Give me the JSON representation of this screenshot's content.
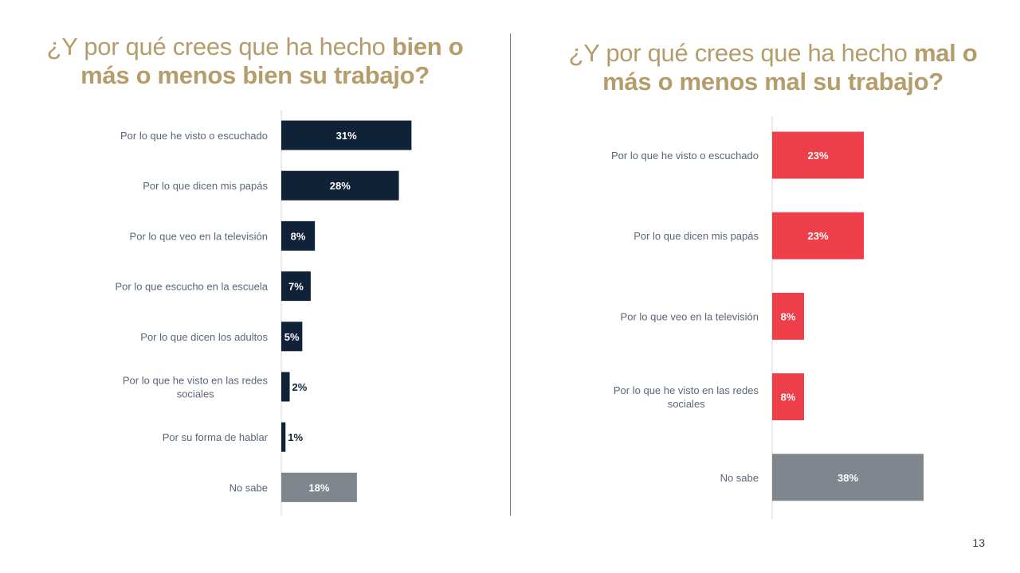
{
  "left_title": {
    "light": "¿Y por qué crees que ha hecho ",
    "bold": "bien o más o menos bien su trabajo?"
  },
  "right_title": {
    "light": "¿Y por qué crees que ha hecho ",
    "bold": "mal o más o menos mal su trabajo?"
  },
  "page_number": "13",
  "colors": {
    "title": "#b49d6b",
    "navy": "#0f2237",
    "red": "#ee3e4a",
    "gray": "#7f868e",
    "axis": "#d4d4d4"
  },
  "chart_data": [
    {
      "type": "bar",
      "orientation": "horizontal",
      "title": "¿Y por qué crees que ha hecho bien o más o menos bien su trabajo?",
      "categories": [
        [
          "Por lo que he visto o escuchado"
        ],
        [
          "Por lo que dicen mis papás"
        ],
        [
          "Por lo que veo en la televisión"
        ],
        [
          "Por lo que escucho en la escuela"
        ],
        [
          "Por lo que dicen los adultos"
        ],
        [
          "Por lo que he visto en las redes",
          "sociales"
        ],
        [
          "Por su forma de hablar"
        ],
        [
          "No sabe"
        ]
      ],
      "values": [
        31,
        28,
        8,
        7,
        5,
        2,
        1,
        18
      ],
      "value_labels": [
        "31%",
        "28%",
        "8%",
        "7%",
        "5%",
        "2%",
        "1%",
        "18%"
      ],
      "bar_colors": [
        "#0f2237",
        "#0f2237",
        "#0f2237",
        "#0f2237",
        "#0f2237",
        "#0f2237",
        "#0f2237",
        "#7f868e"
      ],
      "label_inside": [
        true,
        true,
        true,
        true,
        true,
        false,
        false,
        true
      ],
      "xlim": [
        0,
        100
      ]
    },
    {
      "type": "bar",
      "orientation": "horizontal",
      "title": "¿Y por qué crees que ha hecho mal o más o menos mal su trabajo?",
      "categories": [
        [
          "Por lo que he visto o escuchado"
        ],
        [
          "Por lo que dicen mis papás"
        ],
        [
          "Por lo que veo en la televisión"
        ],
        [
          "Por lo que he visto en las redes",
          "sociales"
        ],
        [
          "No sabe"
        ]
      ],
      "values": [
        23,
        23,
        8,
        8,
        38
      ],
      "value_labels": [
        "23%",
        "23%",
        "8%",
        "8%",
        "38%"
      ],
      "bar_colors": [
        "#ee3e4a",
        "#ee3e4a",
        "#ee3e4a",
        "#ee3e4a",
        "#7f868e"
      ],
      "label_inside": [
        true,
        true,
        true,
        true,
        true
      ],
      "xlim": [
        0,
        100
      ]
    }
  ]
}
